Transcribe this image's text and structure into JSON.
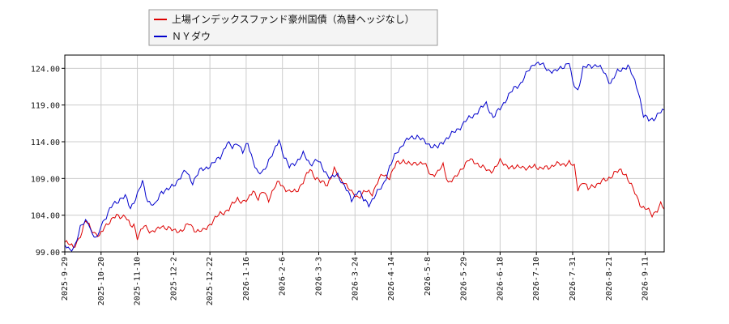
{
  "chart_data": {
    "type": "line",
    "ylim": [
      99.0,
      125.8
    ],
    "y_ticks": [
      "99.00",
      "104.00",
      "109.00",
      "114.00",
      "119.00",
      "124.00"
    ],
    "x_ticks": [
      "2025-9-29",
      "2025-10-20",
      "2025-11-10",
      "2025-12-2",
      "2025-12-22",
      "2026-1-16",
      "2026-2-6",
      "2026-3-3",
      "2026-3-24",
      "2026-4-14",
      "2026-5-8",
      "2026-5-29",
      "2026-6-18",
      "2026-7-10",
      "2026-7-31",
      "2026-8-21",
      "2026-9-11"
    ],
    "x_tick_index": [
      0,
      21,
      42,
      63,
      84,
      105,
      126,
      147,
      168,
      189,
      210,
      231,
      252,
      273,
      294,
      315,
      336
    ],
    "x_count": 348,
    "grid": true,
    "legend_position": "top-left",
    "series": [
      {
        "name": "上場インデックスファンド豪州国債（為替ヘッジなし）",
        "color": "#dd0000",
        "keypoints": [
          [
            0,
            100.3
          ],
          [
            5,
            99.7
          ],
          [
            10,
            101.5
          ],
          [
            12,
            103.3
          ],
          [
            14,
            102.8
          ],
          [
            17,
            101.5
          ],
          [
            20,
            101.0
          ],
          [
            23,
            102.6
          ],
          [
            27,
            103.2
          ],
          [
            30,
            104.0
          ],
          [
            35,
            103.8
          ],
          [
            38,
            102.5
          ],
          [
            40,
            102.8
          ],
          [
            42,
            101.0
          ],
          [
            46,
            102.5
          ],
          [
            50,
            101.8
          ],
          [
            54,
            102.0
          ],
          [
            56,
            102.5
          ],
          [
            60,
            102.3
          ],
          [
            63,
            101.8
          ],
          [
            68,
            102.0
          ],
          [
            72,
            102.8
          ],
          [
            76,
            101.9
          ],
          [
            80,
            101.8
          ],
          [
            84,
            102.8
          ],
          [
            90,
            104.2
          ],
          [
            95,
            104.8
          ],
          [
            100,
            106.3
          ],
          [
            103,
            105.8
          ],
          [
            106,
            106.0
          ],
          [
            109,
            107.5
          ],
          [
            112,
            106.2
          ],
          [
            115,
            107.2
          ],
          [
            118,
            106.2
          ],
          [
            121,
            107.6
          ],
          [
            124,
            108.5
          ],
          [
            127,
            107.8
          ],
          [
            130,
            107.1
          ],
          [
            134,
            107.3
          ],
          [
            138,
            108.5
          ],
          [
            142,
            110.3
          ],
          [
            145,
            109.2
          ],
          [
            148,
            108.5
          ],
          [
            152,
            108.2
          ],
          [
            156,
            110.2
          ],
          [
            159,
            109.0
          ],
          [
            162,
            108.5
          ],
          [
            166,
            107.0
          ],
          [
            170,
            106.5
          ],
          [
            174,
            107.2
          ],
          [
            178,
            107.0
          ],
          [
            181,
            108.5
          ],
          [
            184,
            109.5
          ],
          [
            188,
            109.2
          ],
          [
            192,
            111.0
          ],
          [
            196,
            111.5
          ],
          [
            200,
            110.8
          ],
          [
            204,
            111.2
          ],
          [
            208,
            111.0
          ],
          [
            212,
            109.5
          ],
          [
            216,
            109.8
          ],
          [
            219,
            110.8
          ],
          [
            222,
            108.5
          ],
          [
            226,
            109.0
          ],
          [
            230,
            110.5
          ],
          [
            234,
            111.5
          ],
          [
            238,
            111.2
          ],
          [
            242,
            110.5
          ],
          [
            245,
            110.0
          ],
          [
            248,
            110.2
          ],
          [
            252,
            111.3
          ],
          [
            256,
            110.8
          ],
          [
            260,
            110.3
          ],
          [
            264,
            110.8
          ],
          [
            268,
            110.2
          ],
          [
            272,
            110.8
          ],
          [
            276,
            110.3
          ],
          [
            280,
            110.5
          ],
          [
            284,
            111.0
          ],
          [
            288,
            110.8
          ],
          [
            292,
            111.3
          ],
          [
            295,
            110.5
          ],
          [
            297,
            107.5
          ],
          [
            300,
            108.7
          ],
          [
            303,
            107.5
          ],
          [
            306,
            108.0
          ],
          [
            310,
            108.5
          ],
          [
            314,
            108.8
          ],
          [
            318,
            109.8
          ],
          [
            322,
            110.0
          ],
          [
            325,
            109.5
          ],
          [
            328,
            108.0
          ],
          [
            331,
            106.5
          ],
          [
            334,
            105.2
          ],
          [
            337,
            104.8
          ],
          [
            340,
            104.0
          ],
          [
            343,
            104.8
          ],
          [
            345,
            105.5
          ],
          [
            347,
            104.8
          ]
        ]
      },
      {
        "name": "ＮＹダウ",
        "color": "#0000cc",
        "keypoints": [
          [
            0,
            99.8
          ],
          [
            3,
            99.2
          ],
          [
            6,
            100.0
          ],
          [
            9,
            102.2
          ],
          [
            12,
            103.3
          ],
          [
            14,
            103.0
          ],
          [
            16,
            101.2
          ],
          [
            19,
            100.8
          ],
          [
            21,
            102.8
          ],
          [
            24,
            103.8
          ],
          [
            28,
            105.5
          ],
          [
            32,
            106.2
          ],
          [
            35,
            106.5
          ],
          [
            38,
            105.0
          ],
          [
            42,
            106.8
          ],
          [
            45,
            108.5
          ],
          [
            48,
            106.0
          ],
          [
            52,
            105.2
          ],
          [
            56,
            107.3
          ],
          [
            60,
            107.5
          ],
          [
            63,
            108.0
          ],
          [
            66,
            109.0
          ],
          [
            70,
            110.0
          ],
          [
            74,
            108.5
          ],
          [
            78,
            110.0
          ],
          [
            82,
            110.5
          ],
          [
            86,
            111.0
          ],
          [
            90,
            112.0
          ],
          [
            94,
            113.8
          ],
          [
            97,
            113.2
          ],
          [
            100,
            114.0
          ],
          [
            103,
            112.5
          ],
          [
            106,
            113.8
          ],
          [
            109,
            111.5
          ],
          [
            112,
            109.5
          ],
          [
            115,
            110.0
          ],
          [
            118,
            111.5
          ],
          [
            121,
            112.5
          ],
          [
            124,
            114.3
          ],
          [
            127,
            112.0
          ],
          [
            130,
            110.5
          ],
          [
            134,
            111.3
          ],
          [
            138,
            112.3
          ],
          [
            142,
            111.0
          ],
          [
            146,
            111.5
          ],
          [
            150,
            110.2
          ],
          [
            154,
            109.0
          ],
          [
            158,
            109.5
          ],
          [
            162,
            108.0
          ],
          [
            166,
            106.0
          ],
          [
            170,
            107.5
          ],
          [
            173,
            106.0
          ],
          [
            176,
            105.5
          ],
          [
            180,
            106.8
          ],
          [
            184,
            108.0
          ],
          [
            188,
            110.5
          ],
          [
            192,
            112.5
          ],
          [
            196,
            113.8
          ],
          [
            200,
            114.5
          ],
          [
            204,
            114.8
          ],
          [
            208,
            114.0
          ],
          [
            212,
            113.5
          ],
          [
            216,
            113.2
          ],
          [
            220,
            114.3
          ],
          [
            224,
            115.0
          ],
          [
            228,
            115.8
          ],
          [
            232,
            116.8
          ],
          [
            236,
            117.5
          ],
          [
            240,
            118.3
          ],
          [
            244,
            119.2
          ],
          [
            248,
            117.3
          ],
          [
            252,
            118.5
          ],
          [
            256,
            120.0
          ],
          [
            260,
            121.2
          ],
          [
            264,
            122.0
          ],
          [
            268,
            123.5
          ],
          [
            272,
            124.8
          ],
          [
            276,
            124.5
          ],
          [
            280,
            123.8
          ],
          [
            284,
            123.5
          ],
          [
            288,
            124.2
          ],
          [
            292,
            124.8
          ],
          [
            294,
            122.0
          ],
          [
            297,
            121.0
          ],
          [
            300,
            124.0
          ],
          [
            304,
            124.3
          ],
          [
            308,
            124.5
          ],
          [
            312,
            123.5
          ],
          [
            316,
            122.0
          ],
          [
            320,
            123.5
          ],
          [
            323,
            124.0
          ],
          [
            326,
            124.3
          ],
          [
            329,
            122.8
          ],
          [
            332,
            121.0
          ],
          [
            335,
            117.5
          ],
          [
            338,
            117.0
          ],
          [
            341,
            117.2
          ],
          [
            344,
            117.8
          ],
          [
            347,
            118.3
          ]
        ]
      }
    ]
  }
}
